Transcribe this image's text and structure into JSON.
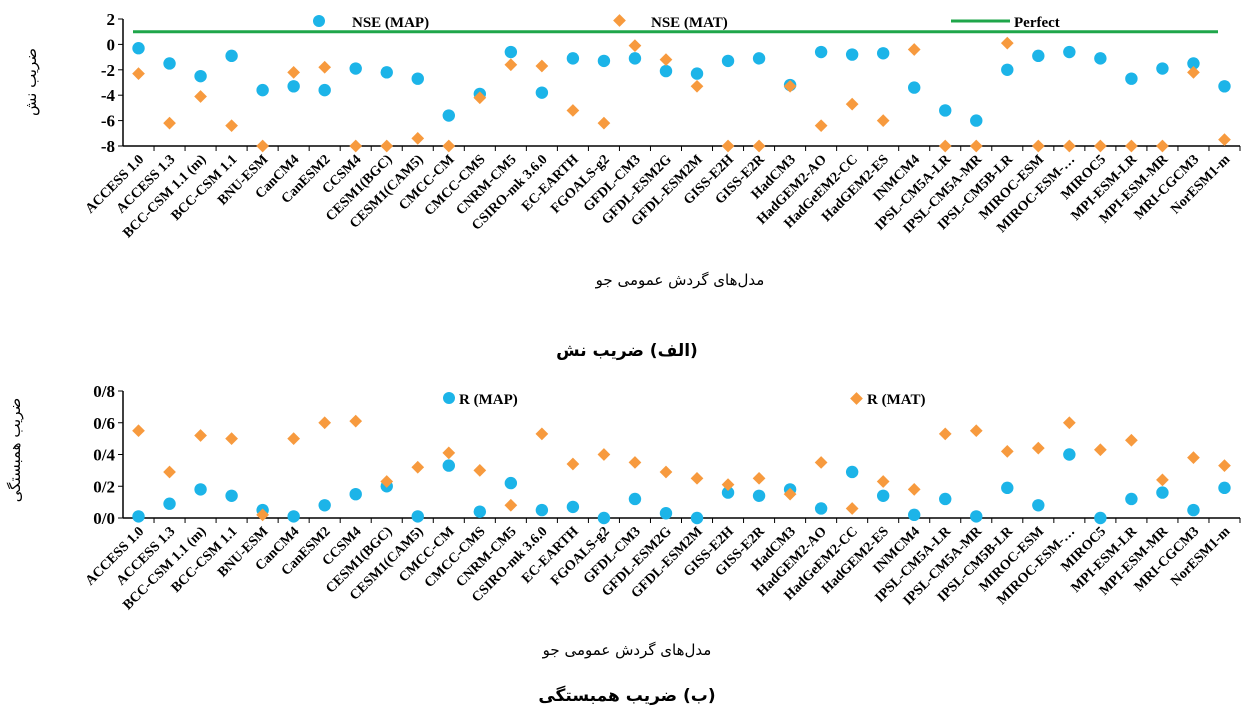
{
  "chart_data": [
    {
      "type": "scatter",
      "title": "",
      "caption": "(الف) ضریب نش",
      "xlabel": "مدل‌های گردش عمومی جو",
      "ylabel": "ضریب نش",
      "ylim": [
        -8,
        2
      ],
      "yticks": [
        "2",
        "0",
        "-2",
        "-4",
        "-6",
        "-8"
      ],
      "grid": false,
      "legend": "top",
      "categories": [
        "ACCESS 1.0",
        "ACCESS 1.3",
        "BCC-CSM 1.1 (m)",
        "BCC-CSM 1.1",
        "BNU-ESM",
        "CanCM4",
        "CanESM2",
        "CCSM4",
        "CESM1(BGC)",
        "CESM1(CAM5)",
        "CMCC-CM",
        "CMCC-CMS",
        "CNRM-CM5",
        "CSIRO-mk 3.6.0",
        "EC-EARTH",
        "FGOALS-g2",
        "GFDL-CM3",
        "GFDL-ESM2G",
        "GFDL-ESM2M",
        "GISS-E2H",
        "GISS-E2R",
        "HadCM3",
        "HadGEM2-AO",
        "HadGeEM2-CC",
        "HadGEM2-ES",
        "INMCM4",
        "IPSL-CM5A-LR",
        "IPSL-CM5A-MR",
        "IPSL-CM5B-LR",
        "MIROC-ESM",
        "MIROC-ESM-…",
        "MIROC5",
        "MPI-ESM-LR",
        "MPI-ESM-MR",
        "MRI-CGCM3",
        "NorESM1-m"
      ],
      "series": [
        {
          "name": "NSE (MAP)",
          "color": "#1cb4e8",
          "marker": "circle",
          "values": [
            -0.3,
            -1.5,
            -2.5,
            -0.9,
            -3.6,
            -3.3,
            -3.6,
            -1.9,
            -2.2,
            -2.7,
            -5.6,
            -3.9,
            -0.6,
            -3.8,
            -1.1,
            -1.3,
            -1.1,
            -2.1,
            -2.3,
            -1.3,
            -1.1,
            -3.2,
            -0.6,
            -0.8,
            -0.7,
            -3.4,
            -5.2,
            -6.0,
            -2.0,
            -0.9,
            -0.6,
            -1.1,
            -2.7,
            -1.9,
            -1.5,
            -3.3
          ]
        },
        {
          "name": "NSE (MAT)",
          "color": "#f79a3e",
          "marker": "diamond",
          "values": [
            -2.3,
            -6.2,
            -4.1,
            -6.4,
            -8.0,
            -2.2,
            -1.8,
            -8.0,
            -8.0,
            -7.4,
            -8.0,
            -4.2,
            -1.6,
            -1.7,
            -5.2,
            -6.2,
            -0.1,
            -1.2,
            -3.3,
            -8.0,
            -8.0,
            -3.3,
            -6.4,
            -4.7,
            -6.0,
            -0.4,
            -8.0,
            -8.0,
            0.1,
            -8.0,
            -8.0,
            -8.0,
            -8.0,
            -8.0,
            -2.2,
            -7.5
          ]
        },
        {
          "name": "Perfect",
          "color": "#1fa64a",
          "marker": "line",
          "value": 1
        }
      ]
    },
    {
      "type": "scatter",
      "title": "",
      "caption": "(ب) ضریب همبستگی",
      "xlabel": "مدل‌های گردش عمومی جو",
      "ylabel": "ضریب همبستگی",
      "ylim": [
        0,
        0.8
      ],
      "yticks": [
        "0/8",
        "0/6",
        "0/4",
        "0/2",
        "0/0"
      ],
      "grid": false,
      "legend": "top",
      "categories": [
        "ACCESS 1.0",
        "ACCESS 1.3",
        "BCC-CSM 1.1 (m)",
        "BCC-CSM 1.1",
        "BNU-ESM",
        "CanCM4",
        "CanESM2",
        "CCSM4",
        "CESM1(BGC)",
        "CESM1(CAM5)",
        "CMCC-CM",
        "CMCC-CMS",
        "CNRM-CM5",
        "CSIRO-mk 3.6.0",
        "EC-EARTH",
        "FGOALS-g2",
        "GFDL-CM3",
        "GFDL-ESM2G",
        "GFDL-ESM2M",
        "GISS-E2H",
        "GISS-E2R",
        "HadCM3",
        "HadGEM2-AO",
        "HadGeEM2-CC",
        "HadGEM2-ES",
        "INMCM4",
        "IPSL-CM5A-LR",
        "IPSL-CM5A-MR",
        "IPSL-CM5B-LR",
        "MIROC-ESM",
        "MIROC-ESM-…",
        "MIROC5",
        "MPI-ESM-LR",
        "MPI-ESM-MR",
        "MRI-CGCM3",
        "NorESM1-m"
      ],
      "series": [
        {
          "name": "R (MAP)",
          "color": "#1cb4e8",
          "marker": "circle",
          "values": [
            0.01,
            0.09,
            0.18,
            0.14,
            0.05,
            0.01,
            0.08,
            0.15,
            0.2,
            0.01,
            0.33,
            0.04,
            0.22,
            0.05,
            0.07,
            0.0,
            0.12,
            0.03,
            0.0,
            0.16,
            0.14,
            0.18,
            0.06,
            0.29,
            0.14,
            0.02,
            0.12,
            0.01,
            0.19,
            0.08,
            0.4,
            0.0,
            0.12,
            0.16,
            0.05,
            0.19
          ]
        },
        {
          "name": "R (MAT)",
          "color": "#f79a3e",
          "marker": "diamond",
          "values": [
            0.55,
            0.29,
            0.52,
            0.5,
            0.02,
            0.5,
            0.6,
            0.61,
            0.23,
            0.32,
            0.41,
            0.3,
            0.08,
            0.53,
            0.34,
            0.4,
            0.35,
            0.29,
            0.25,
            0.21,
            0.25,
            0.15,
            0.35,
            0.06,
            0.23,
            0.18,
            0.53,
            0.55,
            0.42,
            0.44,
            0.6,
            0.43,
            0.49,
            0.24,
            0.38,
            0.33
          ]
        }
      ]
    }
  ]
}
